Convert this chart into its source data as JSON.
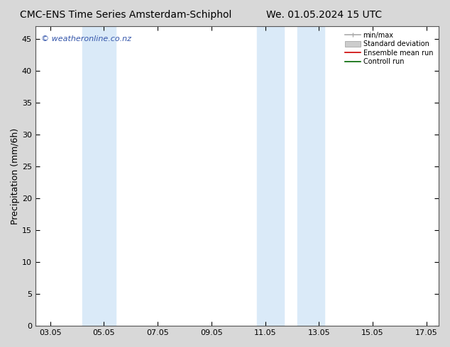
{
  "title_left": "CMC-ENS Time Series Amsterdam-Schiphol",
  "title_right": "We. 01.05.2024 15 UTC",
  "ylabel": "Precipitation (mm/6h)",
  "copyright": "© weatheronline.co.nz",
  "xlim_start": 2.5,
  "xlim_end": 17.5,
  "ylim": [
    0,
    47
  ],
  "yticks": [
    0,
    5,
    10,
    15,
    20,
    25,
    30,
    35,
    40,
    45
  ],
  "xticks": [
    3.05,
    5.05,
    7.05,
    9.05,
    11.05,
    13.05,
    15.05,
    17.05
  ],
  "xtick_labels": [
    "03.05",
    "05.05",
    "07.05",
    "09.05",
    "11.05",
    "13.05",
    "15.05",
    "17.05"
  ],
  "shaded_bands": [
    {
      "x_start": 4.25,
      "x_end": 5.5
    },
    {
      "x_start": 10.75,
      "x_end": 11.75
    },
    {
      "x_start": 12.25,
      "x_end": 13.25
    }
  ],
  "band_color": "#daeaf8",
  "legend_items": [
    {
      "label": "min/max",
      "color": "#aaaaaa",
      "lw": 1.2,
      "style": "minmax"
    },
    {
      "label": "Standard deviation",
      "color": "#cccccc",
      "lw": 8,
      "style": "band"
    },
    {
      "label": "Ensemble mean run",
      "color": "#cc0000",
      "lw": 1.2,
      "style": "line"
    },
    {
      "label": "Controll run",
      "color": "#006600",
      "lw": 1.2,
      "style": "line"
    }
  ],
  "bg_color": "#d8d8d8",
  "plot_bg_color": "#ffffff",
  "border_color": "#555555",
  "tick_color": "#000000",
  "label_color": "#000000",
  "title_fontsize": 10,
  "axis_fontsize": 9,
  "tick_fontsize": 8,
  "copyright_color": "#3355aa",
  "copyright_fontsize": 8
}
